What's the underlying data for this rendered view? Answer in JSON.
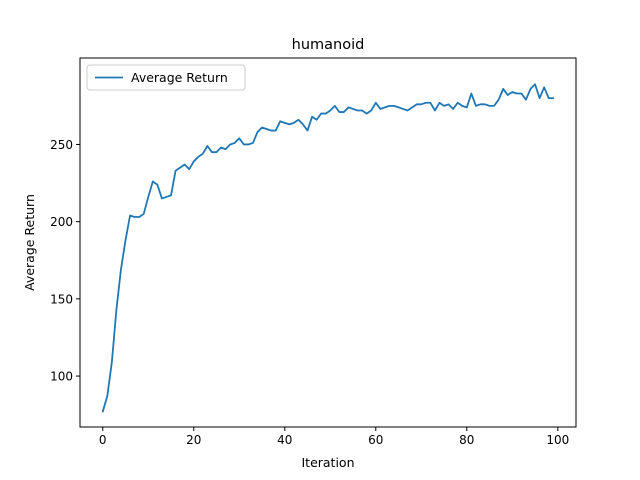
{
  "chart_data": {
    "type": "line",
    "title": "humanoid",
    "xlabel": "Iteration",
    "ylabel": "Average Return",
    "xlim": [
      -5,
      104
    ],
    "ylim": [
      67,
      306
    ],
    "xticks": [
      0,
      20,
      40,
      60,
      80,
      100
    ],
    "yticks": [
      100,
      150,
      200,
      250
    ],
    "grid": false,
    "legend": {
      "placement": "top-left"
    },
    "series": [
      {
        "name": "Average Return",
        "color": "#1f77b4",
        "x": [
          0,
          1,
          2,
          3,
          4,
          5,
          6,
          7,
          8,
          9,
          10,
          11,
          12,
          13,
          14,
          15,
          16,
          17,
          18,
          19,
          20,
          21,
          22,
          23,
          24,
          25,
          26,
          27,
          28,
          29,
          30,
          31,
          32,
          33,
          34,
          35,
          36,
          37,
          38,
          39,
          40,
          41,
          42,
          43,
          44,
          45,
          46,
          47,
          48,
          49,
          50,
          51,
          52,
          53,
          54,
          55,
          56,
          57,
          58,
          59,
          60,
          61,
          62,
          63,
          64,
          65,
          66,
          67,
          68,
          69,
          70,
          71,
          72,
          73,
          74,
          75,
          76,
          77,
          78,
          79,
          80,
          81,
          82,
          83,
          84,
          85,
          86,
          87,
          88,
          89,
          90,
          91,
          92,
          93,
          94,
          95,
          96,
          97,
          98,
          99
        ],
        "values": [
          77,
          87,
          109,
          143,
          169,
          188,
          204,
          203,
          203,
          205,
          216,
          226,
          224,
          215,
          216,
          217,
          233,
          235,
          237,
          234,
          239,
          242,
          244,
          249,
          245,
          245,
          248,
          247,
          250,
          251,
          254,
          250,
          250,
          251,
          258,
          261,
          260,
          259,
          259,
          265,
          264,
          263,
          264,
          266,
          263,
          259,
          268,
          266,
          270,
          270,
          272,
          275,
          271,
          271,
          274,
          273,
          272,
          272,
          270,
          272,
          277,
          273,
          274,
          275,
          275,
          274,
          273,
          272,
          274,
          276,
          276,
          277,
          277,
          272,
          277,
          275,
          276,
          273,
          277,
          275,
          274,
          283,
          275,
          276,
          276,
          275,
          275,
          279,
          286,
          282,
          284,
          283,
          283,
          279,
          286,
          289,
          280,
          287,
          280,
          280
        ]
      }
    ]
  }
}
